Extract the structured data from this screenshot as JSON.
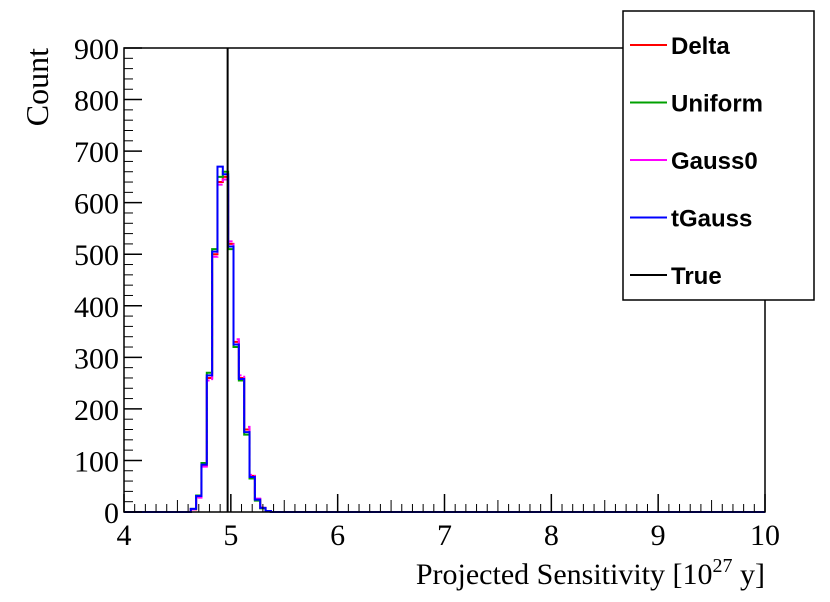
{
  "chart_data": {
    "type": "line",
    "title": "",
    "xlabel": "Projected Sensitivity [10",
    "xlabel_sup": "27",
    "xlabel_tail": " y]",
    "ylabel": "Count",
    "xlim": [
      4,
      10
    ],
    "ylim": [
      0,
      900
    ],
    "x_ticks": [
      4,
      5,
      6,
      7,
      8,
      9,
      10
    ],
    "y_ticks": [
      0,
      100,
      200,
      300,
      400,
      500,
      600,
      700,
      800,
      900
    ],
    "grid": false,
    "legend_position": "top-right",
    "true_value": 4.97,
    "x": [
      4.6,
      4.65,
      4.7,
      4.75,
      4.8,
      4.85,
      4.9,
      4.95,
      5.0,
      5.05,
      5.1,
      5.15,
      5.2,
      5.25,
      5.3,
      5.35,
      5.4
    ],
    "series": [
      {
        "name": "Delta",
        "color": "#ff0000",
        "values": [
          0,
          5,
          30,
          90,
          260,
          500,
          640,
          650,
          520,
          330,
          260,
          160,
          70,
          25,
          8,
          2,
          0
        ]
      },
      {
        "name": "Uniform",
        "color": "#00a000",
        "values": [
          0,
          6,
          32,
          95,
          270,
          510,
          650,
          660,
          510,
          320,
          255,
          150,
          65,
          22,
          7,
          2,
          0
        ]
      },
      {
        "name": "Gauss0",
        "color": "#ff00ff",
        "values": [
          0,
          5,
          28,
          88,
          255,
          495,
          635,
          645,
          525,
          335,
          265,
          165,
          72,
          26,
          9,
          2,
          0
        ]
      },
      {
        "name": "tGauss",
        "color": "#0000ff",
        "values": [
          0,
          6,
          31,
          92,
          265,
          505,
          670,
          655,
          515,
          325,
          258,
          155,
          68,
          24,
          8,
          2,
          0
        ]
      }
    ],
    "reference_line": {
      "name": "True",
      "color": "#000000"
    }
  }
}
